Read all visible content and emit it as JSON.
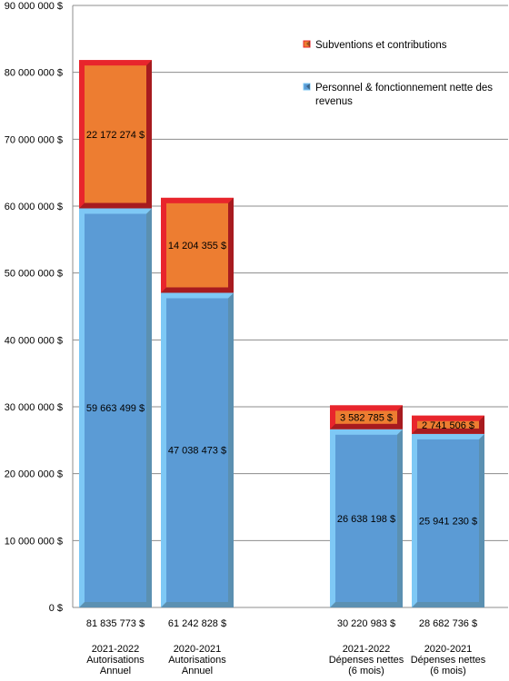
{
  "chart_data": {
    "type": "bar",
    "stacked": true,
    "categories": [
      [
        "2021-2022",
        "Autorisations",
        "Annuel"
      ],
      [
        "2020-2021",
        "Autorisations",
        "Annuel"
      ],
      [
        "2021-2022",
        "Dépenses nettes",
        "(6 mois)"
      ],
      [
        "2020-2021",
        "Dépenses nettes",
        "(6 mois)"
      ]
    ],
    "series": [
      {
        "name": "Personnel & fonctionnement nette des revenus",
        "legend_lines": [
          "Personnel & fonctionnement nette des",
          "revenus"
        ],
        "values": [
          59663499,
          47038473,
          26638198,
          25941230
        ],
        "labels": [
          "59 663 499 $",
          "47 038 473 $",
          "26 638 198 $",
          "25 941 230 $"
        ],
        "color": "#5b9bd5",
        "edge_color": "#7ec8f5"
      },
      {
        "name": "Subventions et contributions",
        "legend_lines": [
          "Subventions et contributions"
        ],
        "values": [
          22172274,
          14204355,
          3582785,
          2741506
        ],
        "labels": [
          "22 172 274 $",
          "14 204 355 $",
          "3 582 785 $",
          "2 741 506 $"
        ],
        "color": "#ed7d31",
        "edge_color": "#e8262c"
      }
    ],
    "totals": [
      "81 835 773 $",
      "61 242 828 $",
      "30 220 983 $",
      "28 682 736 $"
    ],
    "y_ticks": [
      "0 $",
      "10 000 000 $",
      "20 000 000 $",
      "30 000 000 $",
      "40 000 000 $",
      "50 000 000 $",
      "60 000 000 $",
      "70 000 000 $",
      "80 000 000 $",
      "90 000 000 $"
    ],
    "ylim": [
      0,
      90000000
    ],
    "grid": true,
    "legend_position": "top-right"
  }
}
